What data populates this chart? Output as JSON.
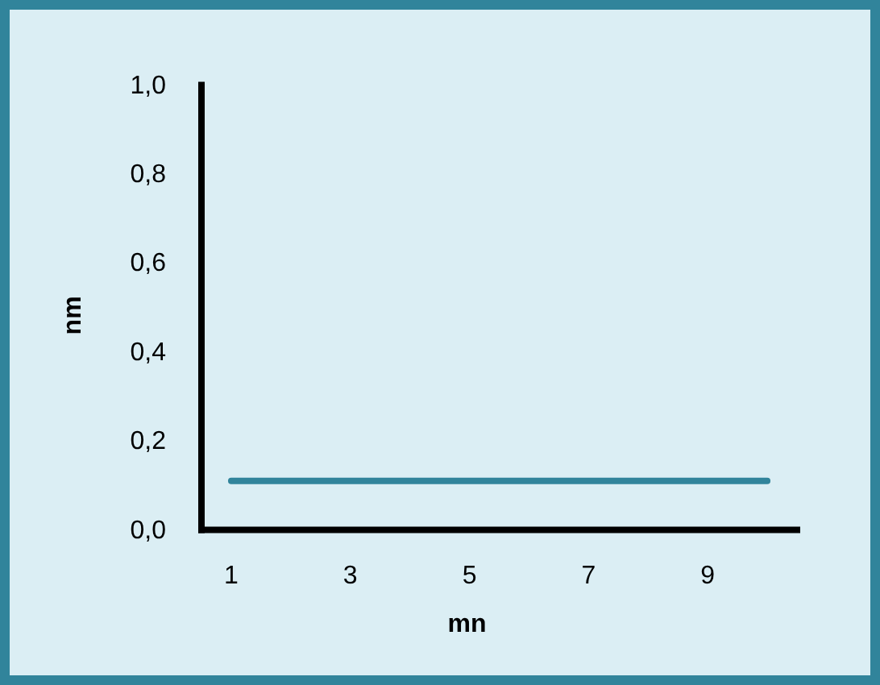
{
  "chart_data": {
    "type": "line",
    "xlabel": "mn",
    "ylabel": "nm",
    "categories": [
      "1",
      null,
      "3",
      null,
      "5",
      null,
      "7",
      null,
      "9",
      null
    ],
    "series": [
      {
        "color": "#31849b",
        "values": [
          0.11,
          0.11,
          0.11,
          0.11,
          0.11,
          0.11,
          0.11,
          0.11,
          0.11,
          0.11
        ]
      }
    ],
    "ylim": [
      0,
      1
    ],
    "yticks": [
      {
        "value": 0,
        "label": "0,0"
      },
      {
        "value": 0.2,
        "label": "0,2"
      },
      {
        "value": 0.4,
        "label": "0,4"
      },
      {
        "value": 0.6,
        "label": "0,6"
      },
      {
        "value": 0.8,
        "label": "0,8"
      },
      {
        "value": 1,
        "label": "1,0"
      }
    ],
    "grid": false,
    "marker": "none",
    "line_style": "solid"
  }
}
